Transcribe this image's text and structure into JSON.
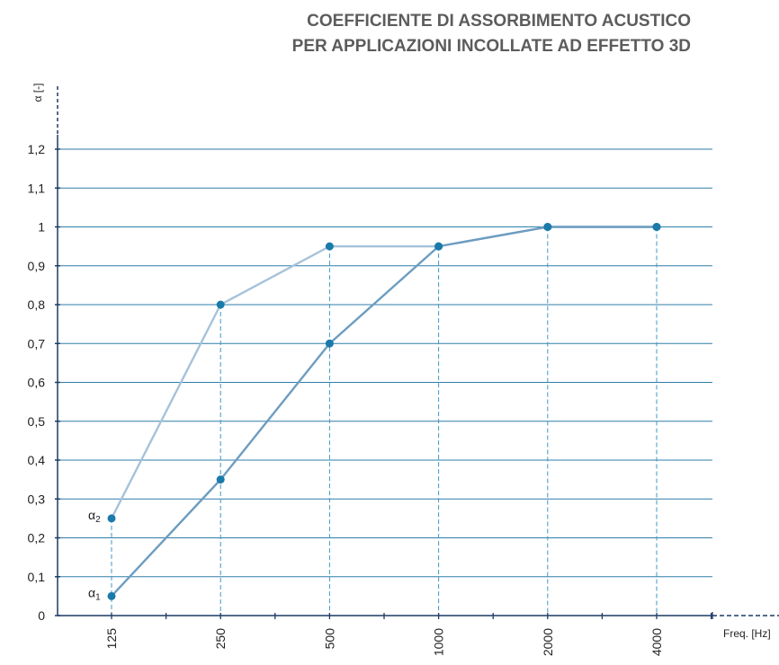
{
  "title": {
    "line1": "COEFFICIENTE DI ASSORBIMENTO ACUSTICO",
    "line2": "PER APPLICAZIONI INCOLLATE AD EFFETTO 3D"
  },
  "chart_data": {
    "type": "line",
    "title": "COEFFICIENTE DI ASSORBIMENTO ACUSTICO PER APPLICAZIONI INCOLLATE AD EFFETTO 3D",
    "xlabel": "Freq. [Hz]",
    "ylabel": "α [-]",
    "categories": [
      "125",
      "250",
      "500",
      "1000",
      "2000",
      "4000"
    ],
    "y_ticks": [
      "0",
      "0,1",
      "0,2",
      "0,3",
      "0,4",
      "0,5",
      "0,6",
      "0,7",
      "0,8",
      "0,9",
      "1",
      "1,1",
      "1,2"
    ],
    "ylim": [
      0,
      1.2
    ],
    "grid": true,
    "series": [
      {
        "name": "α1",
        "label_main": "α",
        "label_sub": "1",
        "color": "#6d9dc0",
        "values": [
          0.05,
          0.35,
          0.7,
          0.95,
          1.0,
          1.0
        ]
      },
      {
        "name": "α2",
        "label_main": "α",
        "label_sub": "2",
        "color": "#a6c2d9",
        "values": [
          0.25,
          0.8,
          0.95,
          0.95,
          1.0,
          1.0
        ]
      }
    ],
    "colors": {
      "grid": "#2f7ea9",
      "axis": "#1d3a66",
      "marker": "#1a7aaa",
      "guide": "#3f97c6"
    }
  }
}
